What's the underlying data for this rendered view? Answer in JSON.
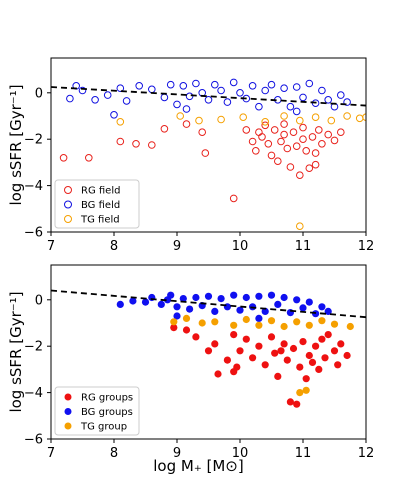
{
  "chart_data": [
    {
      "type": "scatter",
      "marker": "open",
      "xlim": [
        7,
        12
      ],
      "ylim": [
        -6,
        1.5
      ],
      "xticks": [
        "7",
        "8",
        "9",
        "10",
        "11",
        "12"
      ],
      "yticks": [
        "0",
        "−2",
        "−4",
        "−6"
      ],
      "ylabel": "log sSFR [Gyr⁻¹]",
      "xlabel": "",
      "legend_position": "bottom-left",
      "trend_line": {
        "style": "dashed",
        "color": "#000000",
        "x": [
          7.0,
          12.0
        ],
        "y": [
          0.25,
          -0.55
        ]
      },
      "series": [
        {
          "name": "RG field",
          "color": "#e8221c",
          "points": [
            [
              7.2,
              -2.8
            ],
            [
              7.6,
              -2.8
            ],
            [
              8.1,
              -2.1
            ],
            [
              8.35,
              -2.2
            ],
            [
              8.6,
              -2.25
            ],
            [
              8.8,
              -1.55
            ],
            [
              9.15,
              -1.35
            ],
            [
              9.4,
              -1.7
            ],
            [
              9.45,
              -2.6
            ],
            [
              9.9,
              -4.55
            ],
            [
              10.1,
              -1.6
            ],
            [
              10.2,
              -2.1
            ],
            [
              10.25,
              -2.5
            ],
            [
              10.35,
              -1.9
            ],
            [
              10.45,
              -2.2
            ],
            [
              10.5,
              -2.7
            ],
            [
              10.55,
              -1.6
            ],
            [
              10.6,
              -2.95
            ],
            [
              10.65,
              -2.1
            ],
            [
              10.7,
              -1.8
            ],
            [
              10.75,
              -2.4
            ],
            [
              10.8,
              -3.2
            ],
            [
              10.85,
              -1.7
            ],
            [
              10.9,
              -2.3
            ],
            [
              10.95,
              -3.55
            ],
            [
              11.0,
              -2.0
            ],
            [
              11.05,
              -2.5
            ],
            [
              11.1,
              -3.25
            ],
            [
              11.15,
              -1.9
            ],
            [
              11.2,
              -2.6
            ],
            [
              11.25,
              -1.6
            ],
            [
              11.3,
              -2.2
            ],
            [
              11.4,
              -1.8
            ],
            [
              11.5,
              -2.05
            ],
            [
              11.6,
              -1.7
            ],
            [
              10.4,
              -1.4
            ],
            [
              10.7,
              -1.35
            ],
            [
              11.0,
              -1.5
            ],
            [
              10.3,
              -1.7
            ],
            [
              11.2,
              -3.1
            ]
          ]
        },
        {
          "name": "BG field",
          "color": "#1010e0",
          "points": [
            [
              7.3,
              -0.25
            ],
            [
              7.5,
              0.1
            ],
            [
              7.7,
              -0.3
            ],
            [
              7.9,
              -0.1
            ],
            [
              8.1,
              0.2
            ],
            [
              8.2,
              -0.35
            ],
            [
              8.4,
              0.3
            ],
            [
              8.6,
              0.15
            ],
            [
              8.8,
              -0.2
            ],
            [
              8.9,
              0.35
            ],
            [
              9.0,
              -0.5
            ],
            [
              9.1,
              0.3
            ],
            [
              9.2,
              -0.15
            ],
            [
              9.3,
              0.4
            ],
            [
              9.4,
              0.0
            ],
            [
              9.5,
              -0.3
            ],
            [
              9.6,
              0.35
            ],
            [
              9.7,
              0.1
            ],
            [
              9.8,
              -0.4
            ],
            [
              9.9,
              0.45
            ],
            [
              10.0,
              0.0
            ],
            [
              10.1,
              -0.25
            ],
            [
              10.2,
              0.3
            ],
            [
              10.3,
              -0.6
            ],
            [
              10.4,
              0.1
            ],
            [
              10.5,
              0.35
            ],
            [
              10.6,
              -0.3
            ],
            [
              10.7,
              0.2
            ],
            [
              10.8,
              -0.6
            ],
            [
              10.9,
              0.25
            ],
            [
              11.0,
              -0.2
            ],
            [
              11.1,
              0.4
            ],
            [
              11.2,
              -0.45
            ],
            [
              11.3,
              0.1
            ],
            [
              11.4,
              -0.3
            ],
            [
              11.5,
              -0.6
            ],
            [
              11.6,
              -0.1
            ],
            [
              11.7,
              -0.4
            ],
            [
              7.4,
              0.3
            ],
            [
              9.15,
              -0.7
            ],
            [
              8.0,
              -0.95
            ],
            [
              10.9,
              -0.8
            ]
          ]
        },
        {
          "name": "TG field",
          "color": "#f5a000",
          "points": [
            [
              8.1,
              -1.25
            ],
            [
              9.05,
              -1.0
            ],
            [
              9.35,
              -1.2
            ],
            [
              9.7,
              -1.15
            ],
            [
              10.05,
              -1.05
            ],
            [
              10.4,
              -1.25
            ],
            [
              10.7,
              -1.0
            ],
            [
              10.95,
              -1.2
            ],
            [
              11.2,
              -1.05
            ],
            [
              11.45,
              -1.2
            ],
            [
              11.7,
              -1.0
            ],
            [
              11.9,
              -1.1
            ],
            [
              12.0,
              -1.05
            ],
            [
              10.95,
              -5.75
            ]
          ]
        }
      ]
    },
    {
      "type": "scatter",
      "marker": "filled",
      "xlim": [
        7,
        12
      ],
      "ylim": [
        -6,
        1.5
      ],
      "xticks": [
        "7",
        "8",
        "9",
        "10",
        "11",
        "12"
      ],
      "yticks": [
        "0",
        "−2",
        "−4",
        "−6"
      ],
      "ylabel": "log sSFR [Gyr⁻¹]",
      "xlabel": "log M₊ [M⊙]",
      "legend_position": "bottom-left",
      "trend_line": {
        "style": "dashed",
        "color": "#000000",
        "x": [
          7.0,
          12.0
        ],
        "y": [
          0.4,
          -0.75
        ]
      },
      "series": [
        {
          "name": "RG groups",
          "color": "#ee1111",
          "points": [
            [
              9.15,
              -1.3
            ],
            [
              9.3,
              -1.6
            ],
            [
              9.5,
              -2.2
            ],
            [
              9.6,
              -1.9
            ],
            [
              9.65,
              -3.2
            ],
            [
              9.8,
              -2.6
            ],
            [
              9.9,
              -1.5
            ],
            [
              9.9,
              -3.1
            ],
            [
              10.0,
              -2.2
            ],
            [
              10.1,
              -1.7
            ],
            [
              10.2,
              -2.5
            ],
            [
              10.3,
              -2.0
            ],
            [
              10.4,
              -2.8
            ],
            [
              10.5,
              -1.6
            ],
            [
              10.55,
              -2.3
            ],
            [
              10.6,
              -3.3
            ],
            [
              10.7,
              -1.9
            ],
            [
              10.75,
              -2.6
            ],
            [
              10.8,
              -4.4
            ],
            [
              10.85,
              -2.1
            ],
            [
              10.9,
              -4.5
            ],
            [
              10.95,
              -2.9
            ],
            [
              11.0,
              -1.8
            ],
            [
              11.05,
              -3.4
            ],
            [
              11.1,
              -2.4
            ],
            [
              11.2,
              -2.0
            ],
            [
              11.25,
              -3.0
            ],
            [
              11.3,
              -1.7
            ],
            [
              11.35,
              -2.5
            ],
            [
              11.4,
              -1.5
            ],
            [
              11.5,
              -2.2
            ],
            [
              11.55,
              -2.8
            ],
            [
              11.6,
              -1.9
            ],
            [
              11.7,
              -2.4
            ],
            [
              8.95,
              -1.2
            ],
            [
              9.95,
              -2.9
            ],
            [
              10.65,
              -2.2
            ],
            [
              11.15,
              -2.7
            ]
          ]
        },
        {
          "name": "BG groups",
          "color": "#1010f0",
          "points": [
            [
              8.1,
              -0.2
            ],
            [
              8.3,
              -0.05
            ],
            [
              8.5,
              -0.1
            ],
            [
              8.6,
              0.1
            ],
            [
              8.75,
              -0.2
            ],
            [
              8.85,
              0.0
            ],
            [
              9.0,
              -0.3
            ],
            [
              9.1,
              0.05
            ],
            [
              9.2,
              -0.4
            ],
            [
              9.3,
              0.1
            ],
            [
              9.4,
              -0.25
            ],
            [
              9.5,
              0.15
            ],
            [
              9.6,
              -0.5
            ],
            [
              9.7,
              0.05
            ],
            [
              9.8,
              -0.3
            ],
            [
              9.9,
              0.2
            ],
            [
              10.0,
              -0.45
            ],
            [
              10.1,
              0.1
            ],
            [
              10.2,
              -0.3
            ],
            [
              10.3,
              0.15
            ],
            [
              10.4,
              -0.5
            ],
            [
              10.5,
              0.2
            ],
            [
              10.6,
              -0.2
            ],
            [
              10.7,
              0.1
            ],
            [
              10.8,
              -0.55
            ],
            [
              10.9,
              0.0
            ],
            [
              11.0,
              -0.35
            ],
            [
              11.1,
              -0.1
            ],
            [
              11.2,
              -0.6
            ],
            [
              11.3,
              -0.3
            ],
            [
              11.4,
              -0.5
            ],
            [
              9.0,
              -0.7
            ],
            [
              10.3,
              -0.8
            ],
            [
              8.9,
              0.2
            ]
          ]
        },
        {
          "name": "TG group",
          "color": "#f5a000",
          "points": [
            [
              8.95,
              -0.95
            ],
            [
              9.15,
              -0.8
            ],
            [
              9.4,
              -1.0
            ],
            [
              9.6,
              -0.95
            ],
            [
              9.9,
              -1.1
            ],
            [
              10.1,
              -0.85
            ],
            [
              10.3,
              -1.1
            ],
            [
              10.5,
              -0.9
            ],
            [
              10.7,
              -1.15
            ],
            [
              10.9,
              -0.95
            ],
            [
              11.1,
              -1.1
            ],
            [
              11.3,
              -0.9
            ],
            [
              11.5,
              -1.05
            ],
            [
              11.75,
              -1.15
            ],
            [
              10.95,
              -4.0
            ],
            [
              11.05,
              -3.9
            ]
          ]
        }
      ]
    }
  ]
}
